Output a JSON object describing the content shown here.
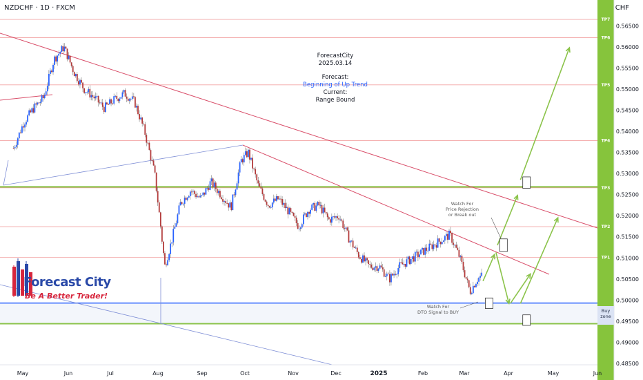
{
  "header": {
    "symbol_line": "NZDCHF · 1D · FXCM",
    "currency": "CHF"
  },
  "forecast_block": {
    "source": "ForecastCity",
    "date": "2025.03.14",
    "forecast_label": "Forecast:",
    "forecast_value": "Beginning of Up Trend",
    "current_label": "Current:",
    "current_value": "Range Bound"
  },
  "notes": {
    "watch_rejection": [
      "Watch For",
      "Price Rejection",
      "or Break out"
    ],
    "watch_dto": [
      "Watch For",
      "DTO Signal to BUY"
    ]
  },
  "logo": {
    "title": "Forecast City",
    "tagline": "Be A Better Trader!"
  },
  "buy_zone_label": [
    "Buy",
    "zone"
  ],
  "colors": {
    "up_candle": "#2962ff",
    "down_candle": "#b33b3b",
    "green_levels": "#8bc34a",
    "tp_panel": "#86c43c",
    "blue_line": "#2962ff",
    "red_trend": "#d94f6a",
    "tp_lines": "#f2a3a3",
    "buy_zone": "#dbe3f4"
  },
  "chart_data": {
    "type": "candlestick",
    "symbol": "NZDCHF",
    "timeframe": "1D",
    "y_axis_ticks": [
      "0.56500",
      "0.56000",
      "0.55500",
      "0.55000",
      "0.54500",
      "0.54000",
      "0.53500",
      "0.53000",
      "0.52500",
      "0.52000",
      "0.51500",
      "0.51000",
      "0.50500",
      "0.50000",
      "0.49500",
      "0.49000",
      "0.48500"
    ],
    "ylim": [
      0.4845,
      0.57
    ],
    "x_axis_ticks": [
      "May",
      "Jun",
      "Jul",
      "Aug",
      "Sep",
      "Oct",
      "Nov",
      "Dec",
      "2025",
      "Feb",
      "Mar",
      "Apr",
      "May",
      "Jun"
    ],
    "x_axis_bold": [
      "2025"
    ],
    "targets": [
      {
        "name": "TP1",
        "price": 0.5101
      },
      {
        "name": "TP2",
        "price": 0.5174
      },
      {
        "name": "TP3",
        "price": 0.5266
      },
      {
        "name": "TP4",
        "price": 0.5378
      },
      {
        "name": "TP5",
        "price": 0.551
      },
      {
        "name": "TP6",
        "price": 0.5622
      },
      {
        "name": "TP7",
        "price": 0.5665
      }
    ],
    "horizontal_levels": [
      {
        "name": "green-upper",
        "price": 0.5268
      },
      {
        "name": "blue-buy",
        "price": 0.4993
      },
      {
        "name": "green-lower",
        "price": 0.4944
      }
    ],
    "price_path": [
      {
        "date": "2024-04-22",
        "price": 0.536
      },
      {
        "date": "2024-04-29",
        "price": 0.542
      },
      {
        "date": "2024-05-06",
        "price": 0.5455
      },
      {
        "date": "2024-05-13",
        "price": 0.548
      },
      {
        "date": "2024-05-20",
        "price": 0.557
      },
      {
        "date": "2024-05-27",
        "price": 0.56
      },
      {
        "date": "2024-06-03",
        "price": 0.554
      },
      {
        "date": "2024-06-10",
        "price": 0.55
      },
      {
        "date": "2024-06-17",
        "price": 0.548
      },
      {
        "date": "2024-06-24",
        "price": 0.5455
      },
      {
        "date": "2024-07-01",
        "price": 0.5475
      },
      {
        "date": "2024-07-08",
        "price": 0.549
      },
      {
        "date": "2024-07-15",
        "price": 0.547
      },
      {
        "date": "2024-07-22",
        "price": 0.54
      },
      {
        "date": "2024-07-29",
        "price": 0.53
      },
      {
        "date": "2024-08-02",
        "price": 0.518
      },
      {
        "date": "2024-08-05",
        "price": 0.508
      },
      {
        "date": "2024-08-09",
        "price": 0.513
      },
      {
        "date": "2024-08-16",
        "price": 0.523
      },
      {
        "date": "2024-08-23",
        "price": 0.526
      },
      {
        "date": "2024-08-30",
        "price": 0.524
      },
      {
        "date": "2024-09-06",
        "price": 0.528
      },
      {
        "date": "2024-09-13",
        "price": 0.525
      },
      {
        "date": "2024-09-20",
        "price": 0.522
      },
      {
        "date": "2024-09-27",
        "price": 0.533
      },
      {
        "date": "2024-10-02",
        "price": 0.535
      },
      {
        "date": "2024-10-09",
        "price": 0.527
      },
      {
        "date": "2024-10-16",
        "price": 0.5225
      },
      {
        "date": "2024-10-23",
        "price": 0.524
      },
      {
        "date": "2024-10-30",
        "price": 0.521
      },
      {
        "date": "2024-11-06",
        "price": 0.5175
      },
      {
        "date": "2024-11-13",
        "price": 0.5215
      },
      {
        "date": "2024-11-20",
        "price": 0.5225
      },
      {
        "date": "2024-11-27",
        "price": 0.519
      },
      {
        "date": "2024-12-04",
        "price": 0.52
      },
      {
        "date": "2024-12-11",
        "price": 0.5145
      },
      {
        "date": "2024-12-18",
        "price": 0.5105
      },
      {
        "date": "2024-12-25",
        "price": 0.508
      },
      {
        "date": "2025-01-01",
        "price": 0.508
      },
      {
        "date": "2025-01-08",
        "price": 0.505
      },
      {
        "date": "2025-01-15",
        "price": 0.508
      },
      {
        "date": "2025-01-22",
        "price": 0.5095
      },
      {
        "date": "2025-01-29",
        "price": 0.511
      },
      {
        "date": "2025-02-05",
        "price": 0.5125
      },
      {
        "date": "2025-02-12",
        "price": 0.514
      },
      {
        "date": "2025-02-19",
        "price": 0.5155
      },
      {
        "date": "2025-02-26",
        "price": 0.51
      },
      {
        "date": "2025-03-05",
        "price": 0.502
      },
      {
        "date": "2025-03-10",
        "price": 0.505
      },
      {
        "date": "2025-03-14",
        "price": 0.506
      }
    ],
    "projection_arrows": [
      {
        "from": [
          "2025-03-14",
          0.5045
        ],
        "to": [
          "2025-03-22",
          0.5108
        ]
      },
      {
        "from": [
          "2025-03-23",
          0.5113
        ],
        "to": [
          "2025-04-01",
          0.4992
        ]
      },
      {
        "from": [
          "2025-04-02",
          0.4992
        ],
        "to": [
          "2025-04-16",
          0.5062
        ]
      },
      {
        "from": [
          "2025-03-24",
          0.513
        ],
        "to": [
          "2025-04-07",
          0.5248
        ]
      },
      {
        "from": [
          "2025-04-09",
          0.4992
        ],
        "to": [
          "2025-05-05",
          0.5195
        ]
      },
      {
        "from": [
          "2025-04-09",
          0.5285
        ],
        "to": [
          "2025-05-13",
          0.5598
        ]
      }
    ],
    "watch_boxes": [
      {
        "date": "2025-03-18",
        "low": 0.498,
        "high": 0.5005
      },
      {
        "date": "2025-03-28",
        "low": 0.5115,
        "high": 0.5145
      },
      {
        "date": "2025-04-13",
        "low": 0.494,
        "high": 0.4965
      },
      {
        "date": "2025-04-13",
        "low": 0.5265,
        "high": 0.5292
      }
    ]
  }
}
